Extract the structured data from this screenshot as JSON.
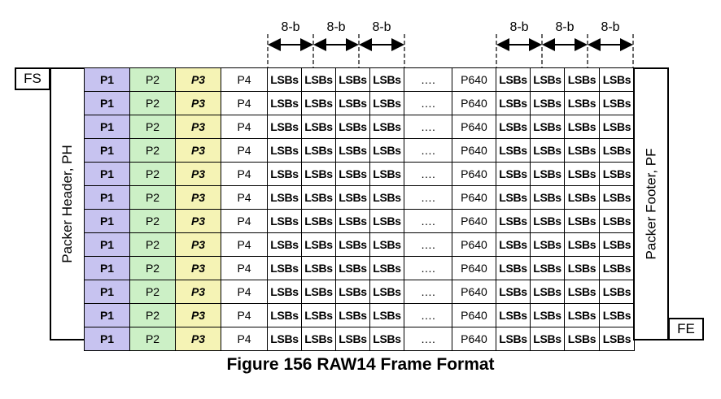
{
  "frame_start": "FS",
  "frame_end": "FE",
  "packet_header": "Packer Header, PH",
  "packet_footer": "Packer Footer, PF",
  "byte_width_label": "8-b",
  "row_cells": [
    "P1",
    "P2",
    "P3",
    "P4",
    "LSBs",
    "LSBs",
    "LSBs",
    "LSBs",
    "….",
    "P640",
    "LSBs",
    "LSBs",
    "LSBs",
    "LSBs"
  ],
  "row_count": 12,
  "caption": "Figure 156 RAW14 Frame Format",
  "colors": {
    "p1": "#c7c3f0",
    "p2": "#ccf0c6",
    "p3": "#f5f3b5",
    "p4": "#ffffff"
  }
}
